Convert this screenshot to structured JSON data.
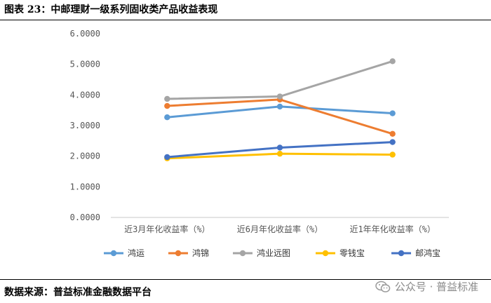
{
  "header": {
    "title": "图表 23：中邮理财一级系列固收类产品收益表现"
  },
  "footer": {
    "source": "数据来源：普益标准金融数据平台",
    "watermark": "公众号 · 普益标准"
  },
  "chart_data": {
    "type": "line",
    "title": "",
    "xlabel": "",
    "ylabel": "",
    "categories": [
      "近3月年化收益率（%）",
      "近6月年化收益率（%）",
      "近1年年化收益率（%）"
    ],
    "ylim": [
      0,
      6
    ],
    "yticks": [
      "0.0000",
      "1.0000",
      "2.0000",
      "3.0000",
      "4.0000",
      "5.0000",
      "6.0000"
    ],
    "grid": false,
    "legend_position": "bottom",
    "series": [
      {
        "name": "鸿运",
        "color": "#5B9BD5",
        "values": [
          3.27,
          3.62,
          3.4
        ]
      },
      {
        "name": "鸿锦",
        "color": "#ED7D31",
        "values": [
          3.64,
          3.85,
          2.73
        ]
      },
      {
        "name": "鸿业远图",
        "color": "#A5A5A5",
        "values": [
          3.87,
          3.95,
          5.1
        ]
      },
      {
        "name": "零钱宝",
        "color": "#FFC000",
        "values": [
          1.93,
          2.08,
          2.05
        ]
      },
      {
        "name": "邮鸿宝",
        "color": "#4472C4",
        "values": [
          1.97,
          2.28,
          2.46
        ]
      }
    ]
  }
}
